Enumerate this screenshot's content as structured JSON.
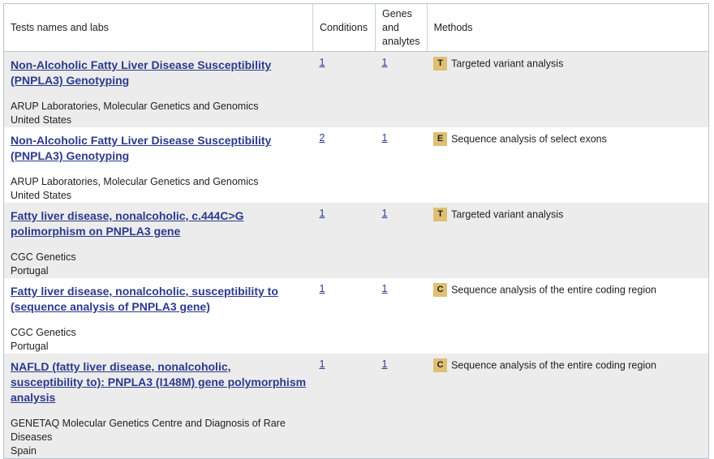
{
  "header": {
    "tests": "Tests names and labs",
    "conditions": "Conditions",
    "genes": "Genes and analytes",
    "methods": "Methods"
  },
  "rows": [
    {
      "test": "Non-Alcoholic Fatty Liver Disease Susceptibility (PNPLA3) Genotyping",
      "lab": "ARUP Laboratories, Molecular Genetics and Genomics",
      "country": "United States",
      "conditions": "1",
      "genes": "1",
      "method_code": "T",
      "method": "Targeted variant analysis"
    },
    {
      "test": "Non-Alcoholic Fatty Liver Disease Susceptibility (PNPLA3) Genotyping",
      "lab": "ARUP Laboratories, Molecular Genetics and Genomics",
      "country": "United States",
      "conditions": "2",
      "genes": "1",
      "method_code": "E",
      "method": "Sequence analysis of select exons"
    },
    {
      "test": "Fatty liver disease, nonalcoholic, c.444C>G polimorphism on PNPLA3 gene",
      "lab": "CGC Genetics",
      "country": "Portugal",
      "conditions": "1",
      "genes": "1",
      "method_code": "T",
      "method": "Targeted variant analysis"
    },
    {
      "test": "Fatty liver disease, nonalcoholic, susceptibility to (sequence analysis of PNPLA3 gene)",
      "lab": "CGC Genetics",
      "country": "Portugal",
      "conditions": "1",
      "genes": "1",
      "method_code": "C",
      "method": "Sequence analysis of the entire coding region"
    },
    {
      "test": "NAFLD (fatty liver disease, nonalcoholic, susceptibility to): PNPLA3 (I148M) gene polymorphism analysis",
      "lab": "GENETAQ Molecular Genetics Centre and Diagnosis of Rare Diseases",
      "country": "Spain",
      "conditions": "1",
      "genes": "1",
      "method_code": "C",
      "method": "Sequence analysis of the entire coding region"
    }
  ]
}
